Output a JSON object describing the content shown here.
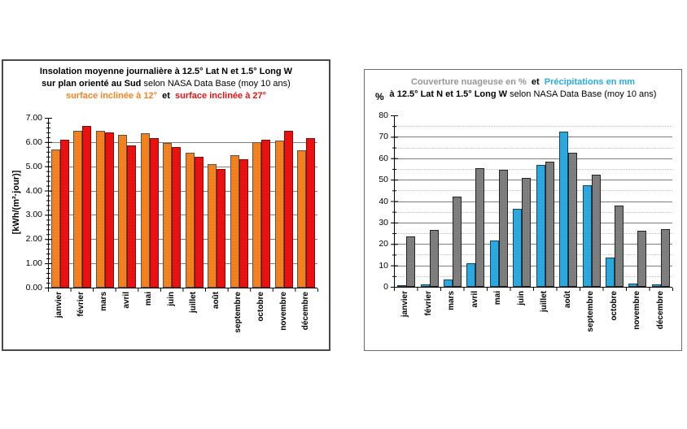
{
  "left_chart": {
    "title_line1": "Insolation moyenne journalière à  12.5° Lat N et 1.5° Long W",
    "title_line2_bold": "sur plan orienté au Sud",
    "title_line2_rest": " selon NASA Data Base (moy 10 ans)",
    "legend_12": "surface inclinée à 12°",
    "legend_et": "et",
    "legend_27": "surface inclinée à 27°",
    "ylabel": "[kWh/(m²·jour)]"
  },
  "right_chart": {
    "title_couverture": "Couverture nuageuse en %",
    "title_et": "et",
    "title_precip": "Précipitations en mm",
    "title_line2_bold": "à 12.5° Lat N et 1.5° Long W",
    "title_line2_rest": " selon NASA Data Base (moy 10 ans)",
    "ylabel": "%"
  },
  "chart_data": [
    {
      "type": "bar",
      "title": "Insolation moyenne journalière à 12.5° Lat N et 1.5° Long W sur plan orienté au Sud selon NASA Data Base (moy 10 ans)",
      "subtitle_legend": "surface inclinée à 12° et surface inclinée à 27°",
      "xlabel": "",
      "ylabel": "[kWh/(m²·jour)]",
      "ylim": [
        0,
        7
      ],
      "ytick_step": 1,
      "ytick_labels": [
        "0.00",
        "1.00",
        "2.00",
        "3.00",
        "4.00",
        "5.00",
        "6.00",
        "7.00"
      ],
      "grid": "solid horizontal lines every 1.00",
      "legend_position": "in-title",
      "categories": [
        "janvier",
        "février",
        "mars",
        "avril",
        "mai",
        "juin",
        "juillet",
        "août",
        "septembre",
        "octobre",
        "novembre",
        "décembre"
      ],
      "series": [
        {
          "name": "surface inclinée à 12°",
          "color": "#F5821E",
          "border": "#5a5248",
          "values": [
            5.7,
            6.45,
            6.45,
            6.3,
            6.35,
            5.95,
            5.55,
            5.1,
            5.45,
            6.0,
            6.05,
            5.65
          ]
        },
        {
          "name": "surface inclinée à 27°",
          "color": "#EE1111",
          "border": "#7d0d0d",
          "values": [
            6.1,
            6.65,
            6.4,
            5.85,
            6.15,
            5.8,
            5.4,
            4.9,
            5.3,
            6.1,
            6.45,
            6.15
          ]
        }
      ]
    },
    {
      "type": "bar",
      "title": "Couverture nuageuse en % et Précipitations en mm à 12.5° Lat N et 1.5° Long W selon NASA Data Base (moy 10 ans)",
      "xlabel": "",
      "ylabel": "%",
      "ylim": [
        0,
        80
      ],
      "ytick_step": 10,
      "ytick_labels": [
        "0",
        "10",
        "20",
        "30",
        "40",
        "50",
        "60",
        "70",
        "80"
      ],
      "grid": "solid horizontal lines every 10, dotted every 5",
      "legend_position": "in-title",
      "categories": [
        "janvier",
        "février",
        "mars",
        "avril",
        "mai",
        "juin",
        "juillet",
        "août",
        "septembre",
        "octobre",
        "novembre",
        "décembre"
      ],
      "series": [
        {
          "name": "Précipitations en mm",
          "color": "#29ABE2",
          "border": "#17425c",
          "values": [
            0.5,
            1,
            3.5,
            11,
            21.5,
            36.5,
            57,
            72.5,
            47.5,
            13.5,
            1.5,
            1
          ]
        },
        {
          "name": "Couverture nuageuse en %",
          "color": "#7F7F7F",
          "border": "#222222",
          "values": [
            23.5,
            26.5,
            42,
            55.5,
            54.5,
            51,
            58.5,
            62.5,
            52.5,
            38,
            26,
            27
          ]
        }
      ]
    }
  ]
}
